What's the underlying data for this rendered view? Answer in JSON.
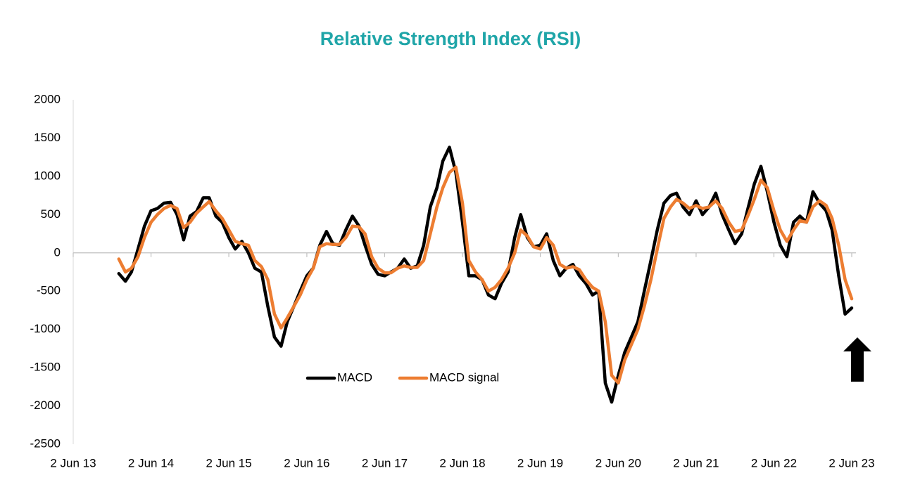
{
  "chart_data": {
    "type": "line",
    "title": "Relative Strength Index (RSI)",
    "x": [
      "2014-01-02",
      "2014-02-02",
      "2014-03-02",
      "2014-04-02",
      "2014-05-02",
      "2014-06-02",
      "2014-07-02",
      "2014-08-02",
      "2014-09-02",
      "2014-10-02",
      "2014-11-02",
      "2014-12-02",
      "2015-01-02",
      "2015-02-02",
      "2015-03-02",
      "2015-04-02",
      "2015-05-02",
      "2015-06-02",
      "2015-07-02",
      "2015-08-02",
      "2015-09-02",
      "2015-10-02",
      "2015-11-02",
      "2015-12-02",
      "2016-01-02",
      "2016-02-02",
      "2016-03-02",
      "2016-04-02",
      "2016-05-02",
      "2016-06-02",
      "2016-07-02",
      "2016-08-02",
      "2016-09-02",
      "2016-10-02",
      "2016-11-02",
      "2016-12-02",
      "2017-01-02",
      "2017-02-02",
      "2017-03-02",
      "2017-04-02",
      "2017-05-02",
      "2017-06-02",
      "2017-07-02",
      "2017-08-02",
      "2017-09-02",
      "2017-10-02",
      "2017-11-02",
      "2017-12-02",
      "2018-01-02",
      "2018-02-02",
      "2018-03-02",
      "2018-04-02",
      "2018-05-02",
      "2018-06-02",
      "2018-07-02",
      "2018-08-02",
      "2018-09-02",
      "2018-10-02",
      "2018-11-02",
      "2018-12-02",
      "2019-01-02",
      "2019-02-02",
      "2019-03-02",
      "2019-04-02",
      "2019-05-02",
      "2019-06-02",
      "2019-07-02",
      "2019-08-02",
      "2019-09-02",
      "2019-10-02",
      "2019-11-02",
      "2019-12-02",
      "2020-01-02",
      "2020-02-02",
      "2020-03-02",
      "2020-04-02",
      "2020-05-02",
      "2020-06-02",
      "2020-07-02",
      "2020-08-02",
      "2020-09-02",
      "2020-10-02",
      "2020-11-02",
      "2020-12-02",
      "2021-01-02",
      "2021-02-02",
      "2021-03-02",
      "2021-04-02",
      "2021-05-02",
      "2021-06-02",
      "2021-07-02",
      "2021-08-02",
      "2021-09-02",
      "2021-10-02",
      "2021-11-02",
      "2021-12-02",
      "2022-01-02",
      "2022-02-02",
      "2022-03-02",
      "2022-04-02",
      "2022-05-02",
      "2022-06-02",
      "2022-07-02",
      "2022-08-02",
      "2022-09-02",
      "2022-10-02",
      "2022-11-02",
      "2022-12-02",
      "2023-01-02",
      "2023-02-02",
      "2023-03-02",
      "2023-04-02",
      "2023-05-02",
      "2023-06-02"
    ],
    "series": [
      {
        "name": "MACD",
        "color": "#000000",
        "values": [
          -270,
          -370,
          -250,
          50,
          350,
          550,
          580,
          650,
          660,
          500,
          170,
          480,
          540,
          720,
          720,
          480,
          400,
          200,
          50,
          150,
          0,
          -200,
          -250,
          -700,
          -1100,
          -1220,
          -900,
          -700,
          -500,
          -300,
          -200,
          100,
          280,
          120,
          100,
          300,
          480,
          350,
          100,
          -150,
          -280,
          -300,
          -250,
          -200,
          -80,
          -200,
          -170,
          100,
          600,
          850,
          1200,
          1380,
          1050,
          400,
          -300,
          -300,
          -350,
          -550,
          -600,
          -400,
          -250,
          200,
          500,
          200,
          80,
          100,
          250,
          -100,
          -300,
          -200,
          -150,
          -300,
          -400,
          -550,
          -500,
          -1700,
          -1950,
          -1600,
          -1300,
          -1100,
          -900,
          -500,
          -100,
          300,
          650,
          750,
          780,
          600,
          500,
          680,
          500,
          600,
          780,
          500,
          300,
          120,
          250,
          600,
          900,
          1130,
          800,
          400,
          100,
          -50,
          400,
          480,
          400,
          800,
          650,
          550,
          300,
          -300,
          -800,
          -720
        ]
      },
      {
        "name": "MACD signal",
        "color": "#ed7d31",
        "values": [
          -80,
          -250,
          -200,
          -50,
          200,
          400,
          500,
          580,
          620,
          580,
          330,
          400,
          520,
          600,
          670,
          550,
          450,
          300,
          150,
          120,
          100,
          -100,
          -180,
          -350,
          -800,
          -980,
          -850,
          -700,
          -550,
          -350,
          -200,
          80,
          120,
          110,
          110,
          200,
          350,
          340,
          250,
          -50,
          -200,
          -260,
          -260,
          -200,
          -170,
          -190,
          -190,
          -100,
          250,
          600,
          850,
          1050,
          1120,
          650,
          -100,
          -250,
          -350,
          -500,
          -450,
          -350,
          -200,
          0,
          300,
          220,
          80,
          50,
          200,
          100,
          -150,
          -200,
          -180,
          -220,
          -350,
          -450,
          -500,
          -900,
          -1600,
          -1700,
          -1400,
          -1200,
          -1000,
          -700,
          -350,
          50,
          450,
          600,
          700,
          650,
          580,
          620,
          580,
          600,
          680,
          580,
          400,
          280,
          300,
          500,
          700,
          950,
          850,
          550,
          300,
          150,
          300,
          420,
          400,
          600,
          680,
          620,
          450,
          100,
          -350,
          -600
        ]
      }
    ],
    "xlim": [
      "2013-06-02",
      "2023-06-02"
    ],
    "xticks": [
      {
        "value": "2013-06-02",
        "label": "2 Jun 13"
      },
      {
        "value": "2014-06-02",
        "label": "2 Jun 14"
      },
      {
        "value": "2015-06-02",
        "label": "2 Jun 15"
      },
      {
        "value": "2016-06-02",
        "label": "2 Jun 16"
      },
      {
        "value": "2017-06-02",
        "label": "2 Jun 17"
      },
      {
        "value": "2018-06-02",
        "label": "2 Jun 18"
      },
      {
        "value": "2019-06-02",
        "label": "2 Jun 19"
      },
      {
        "value": "2020-06-02",
        "label": "2 Jun 20"
      },
      {
        "value": "2021-06-02",
        "label": "2 Jun 21"
      },
      {
        "value": "2022-06-02",
        "label": "2 Jun 22"
      },
      {
        "value": "2023-06-02",
        "label": "2 Jun 23"
      }
    ],
    "ylim": [
      -2500,
      2000
    ],
    "yticks": [
      -2500,
      -2000,
      -1500,
      -1000,
      -500,
      0,
      500,
      1000,
      1500,
      2000
    ],
    "legend": "bottom"
  }
}
